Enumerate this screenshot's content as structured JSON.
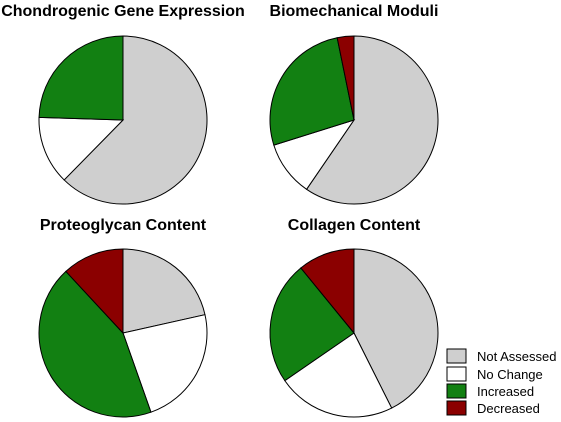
{
  "colors": {
    "not_assessed": "#cfcfcf",
    "no_change": "#ffffff",
    "increased": "#128012",
    "decreased": "#8b0000",
    "stroke": "#000000"
  },
  "legend": {
    "items": [
      {
        "label": "Not Assessed",
        "color_key": "not_assessed"
      },
      {
        "label": "No Change",
        "color_key": "no_change"
      },
      {
        "label": "Increased",
        "color_key": "increased"
      },
      {
        "label": "Decreased",
        "color_key": "decreased"
      }
    ]
  },
  "chart_data": [
    {
      "type": "pie",
      "title": "Chondrogenic Gene Expression",
      "categories": [
        "Not Assessed",
        "No Change",
        "Increased",
        "Decreased"
      ],
      "values": [
        0.6235,
        0.1314,
        0.2451,
        0.0
      ]
    },
    {
      "type": "pie",
      "title": "Biomechanical Moduli",
      "categories": [
        "Not Assessed",
        "No Change",
        "Increased",
        "Decreased"
      ],
      "values": [
        0.5955,
        0.1063,
        0.2662,
        0.0321
      ]
    },
    {
      "type": "pie",
      "title": "Proteoglycan Content",
      "categories": [
        "Not Assessed",
        "No Change",
        "Increased",
        "Decreased"
      ],
      "values": [
        0.215,
        0.231,
        0.435,
        0.119
      ]
    },
    {
      "type": "pie",
      "title": "Collagen Content",
      "categories": [
        "Not Assessed",
        "No Change",
        "Increased",
        "Decreased"
      ],
      "values": [
        0.426,
        0.228,
        0.2369,
        0.1091
      ]
    }
  ]
}
